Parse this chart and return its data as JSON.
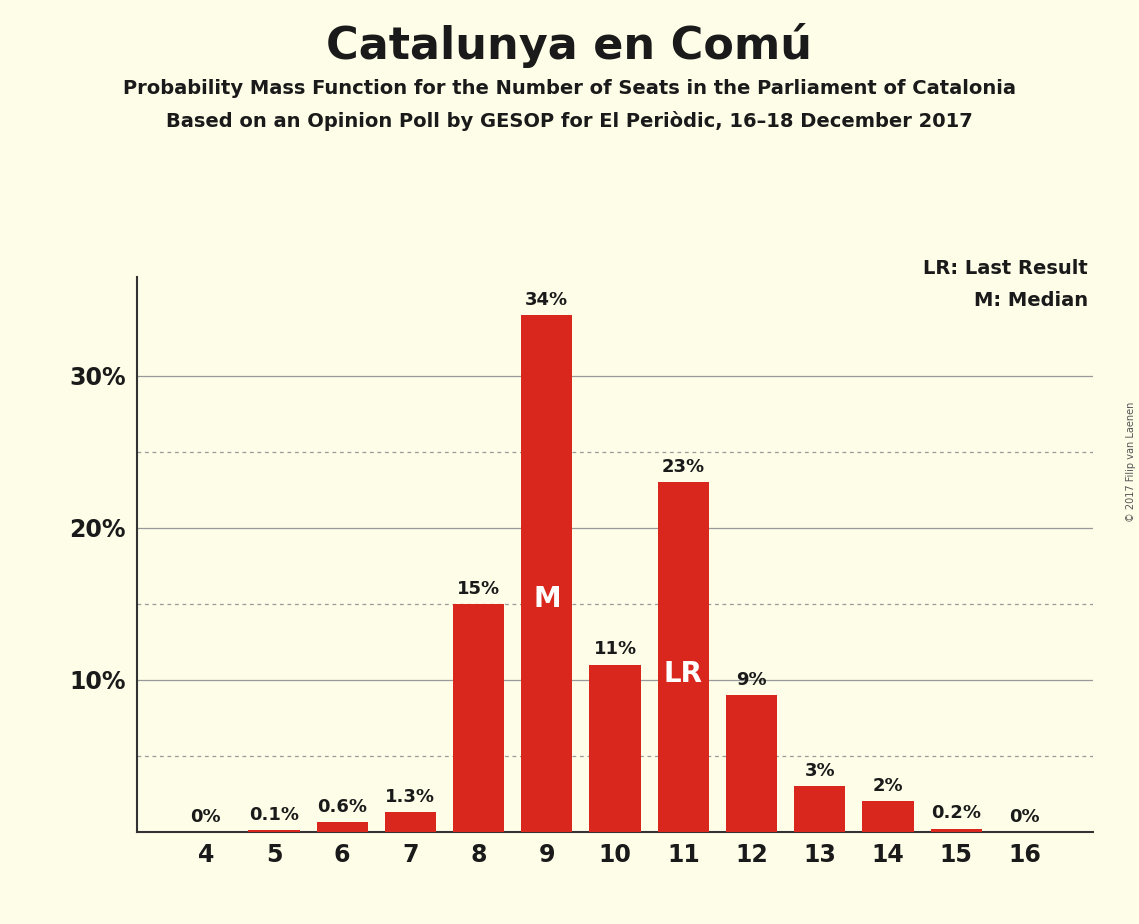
{
  "title": "Catalunya en Comú",
  "subtitle1": "Probability Mass Function for the Number of Seats in the Parliament of Catalonia",
  "subtitle2": "Based on an Opinion Poll by GESOP for El Periòdic, 16–18 December 2017",
  "copyright": "© 2017 Filip van Laenen",
  "categories": [
    4,
    5,
    6,
    7,
    8,
    9,
    10,
    11,
    12,
    13,
    14,
    15,
    16
  ],
  "values": [
    0.0,
    0.1,
    0.6,
    1.3,
    15.0,
    34.0,
    11.0,
    23.0,
    9.0,
    3.0,
    2.0,
    0.2,
    0.0
  ],
  "labels": [
    "0%",
    "0.1%",
    "0.6%",
    "1.3%",
    "15%",
    "34%",
    "11%",
    "23%",
    "9%",
    "3%",
    "2%",
    "0.2%",
    "0%"
  ],
  "bar_color": "#d9271d",
  "background_color": "#fdfde8",
  "title_color": "#1a1a1a",
  "label_color": "#1a1a1a",
  "major_gridlines": [
    10,
    20,
    30
  ],
  "dotted_gridlines": [
    5,
    15,
    25
  ],
  "ytick_positions": [
    10,
    20,
    30
  ],
  "ytick_labels": [
    "10%",
    "20%",
    "30%"
  ],
  "median_seat": 9,
  "last_result_seat": 11,
  "legend_lr": "LR: Last Result",
  "legend_m": "M: Median",
  "ylim": [
    0,
    36.5
  ],
  "label_fontsize": 13,
  "inside_label_fontsize": 20,
  "tick_fontsize": 17,
  "ytick_fontsize": 17,
  "subtitle1_fontsize": 14,
  "subtitle2_fontsize": 14,
  "title_fontsize": 32,
  "legend_fontsize": 14
}
